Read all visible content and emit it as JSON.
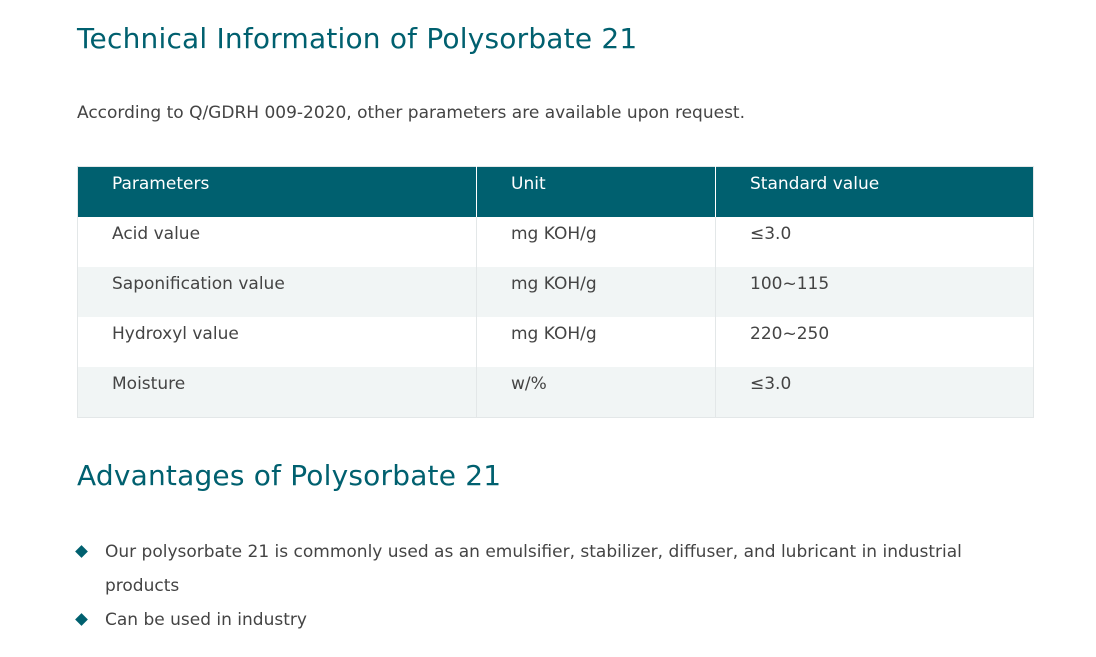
{
  "section_technical": {
    "title": "Technical Information of Polysorbate 21",
    "intro": "According to Q/GDRH 009-2020, other parameters are available upon request."
  },
  "table": {
    "headers": [
      "Parameters",
      "Unit",
      "Standard value"
    ],
    "rows": [
      {
        "parameter": "Acid value",
        "unit": "mg KOH/g",
        "standard": "≤3.0"
      },
      {
        "parameter": "Saponification value",
        "unit": "mg KOH/g",
        "standard": "100~115"
      },
      {
        "parameter": "Hydroxyl value",
        "unit": "mg KOH/g",
        "standard": "220~250"
      },
      {
        "parameter": "Moisture",
        "unit": "w/%",
        "standard": "≤3.0"
      }
    ]
  },
  "section_advantages": {
    "title": "Advantages of Polysorbate 21",
    "items": [
      "Our polysorbate 21 is commonly used as an emulsifier, stabilizer, diffuser, and lubricant in industrial products",
      "Can be used in industry"
    ]
  },
  "colors": {
    "accent": "#00606f",
    "row_alt": "#f1f5f5",
    "text": "#444444"
  },
  "icons": {
    "bullet": "diamond-bullet-icon"
  }
}
